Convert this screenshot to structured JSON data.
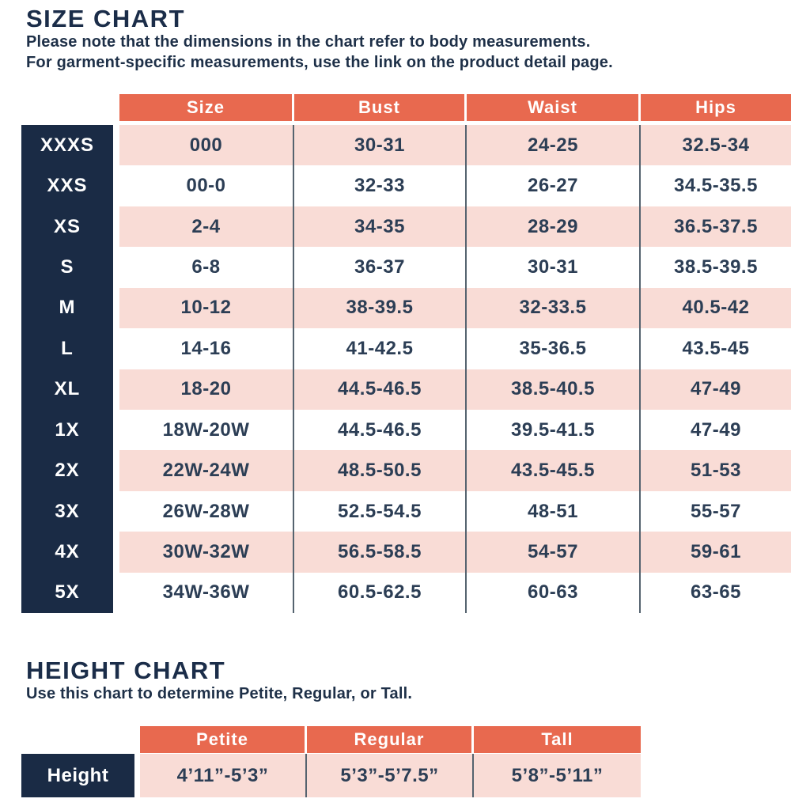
{
  "colors": {
    "header_orange": "#e8694f",
    "label_navy": "#1a2b45",
    "row_pink": "#f9dcd6",
    "row_white": "#ffffff",
    "text_navy": "#2c3e55",
    "divider_slate": "#55636f"
  },
  "size_chart": {
    "title": "SIZE CHART",
    "subtitle_line1": "Please note that the dimensions in the chart refer to body measurements.",
    "subtitle_line2": "For garment-specific measurements, use the link on the product detail page.",
    "columns": [
      "Size",
      "Bust",
      "Waist",
      "Hips"
    ],
    "rows": [
      {
        "label": "XXXS",
        "size": "000",
        "bust": "30-31",
        "waist": "24-25",
        "hips": "32.5-34"
      },
      {
        "label": "XXS",
        "size": "00-0",
        "bust": "32-33",
        "waist": "26-27",
        "hips": "34.5-35.5"
      },
      {
        "label": "XS",
        "size": "2-4",
        "bust": "34-35",
        "waist": "28-29",
        "hips": "36.5-37.5"
      },
      {
        "label": "S",
        "size": "6-8",
        "bust": "36-37",
        "waist": "30-31",
        "hips": "38.5-39.5"
      },
      {
        "label": "M",
        "size": "10-12",
        "bust": "38-39.5",
        "waist": "32-33.5",
        "hips": "40.5-42"
      },
      {
        "label": "L",
        "size": "14-16",
        "bust": "41-42.5",
        "waist": "35-36.5",
        "hips": "43.5-45"
      },
      {
        "label": "XL",
        "size": "18-20",
        "bust": "44.5-46.5",
        "waist": "38.5-40.5",
        "hips": "47-49"
      },
      {
        "label": "1X",
        "size": "18W-20W",
        "bust": "44.5-46.5",
        "waist": "39.5-41.5",
        "hips": "47-49"
      },
      {
        "label": "2X",
        "size": "22W-24W",
        "bust": "48.5-50.5",
        "waist": "43.5-45.5",
        "hips": "51-53"
      },
      {
        "label": "3X",
        "size": "26W-28W",
        "bust": "52.5-54.5",
        "waist": "48-51",
        "hips": "55-57"
      },
      {
        "label": "4X",
        "size": "30W-32W",
        "bust": "56.5-58.5",
        "waist": "54-57",
        "hips": "59-61"
      },
      {
        "label": "5X",
        "size": "34W-36W",
        "bust": "60.5-62.5",
        "waist": "60-63",
        "hips": "63-65"
      }
    ]
  },
  "height_chart": {
    "title": "HEIGHT CHART",
    "subtitle": "Use this chart to determine Petite, Regular, or Tall.",
    "columns": [
      "Petite",
      "Regular",
      "Tall"
    ],
    "row_label": "Height",
    "values": [
      "4’11”-5’3”",
      "5’3”-5’7.5”",
      "5’8”-5’11”"
    ]
  }
}
